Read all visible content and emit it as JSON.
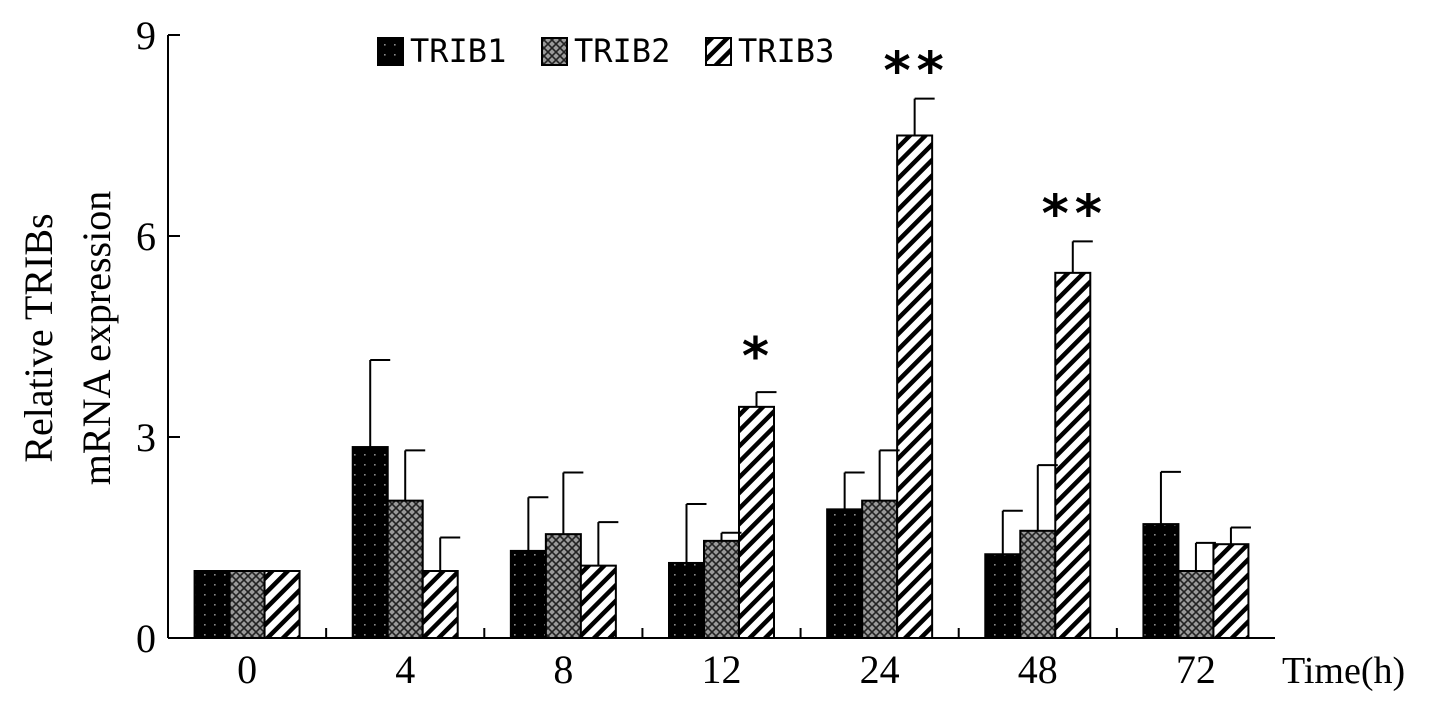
{
  "chart_data": {
    "type": "bar",
    "title": "",
    "ylabel_lines": [
      "Relative TRIBs",
      "mRNA expression"
    ],
    "xlabel": "Time(h)",
    "categories": [
      "0",
      "4",
      "8",
      "12",
      "24",
      "48",
      "72"
    ],
    "ylim": [
      0,
      9
    ],
    "yticks": [
      0,
      3,
      6,
      9
    ],
    "grid": false,
    "legend_position": "top-left",
    "series": [
      {
        "name": "TRIB1",
        "pattern": "dotted-black",
        "values": [
          1.0,
          2.85,
          1.3,
          1.12,
          1.92,
          1.25,
          1.7
        ],
        "errors": [
          0,
          1.3,
          0.8,
          0.88,
          0.55,
          0.65,
          0.78
        ],
        "significance": [
          "",
          "",
          "",
          "",
          "",
          "",
          ""
        ]
      },
      {
        "name": "TRIB2",
        "pattern": "crosshatch-gray",
        "values": [
          1.0,
          2.05,
          1.55,
          1.45,
          2.05,
          1.6,
          1.0
        ],
        "errors": [
          0,
          0.75,
          0.92,
          0.12,
          0.75,
          0.98,
          0.42
        ],
        "significance": [
          "",
          "",
          "",
          "",
          "",
          "",
          ""
        ]
      },
      {
        "name": "TRIB3",
        "pattern": "diagonal-stripes",
        "values": [
          1.0,
          1.0,
          1.08,
          3.45,
          7.5,
          5.45,
          1.4
        ],
        "errors": [
          0,
          0.5,
          0.65,
          0.22,
          0.55,
          0.47,
          0.25
        ],
        "significance": [
          "",
          "",
          "",
          "*",
          "**",
          "**",
          ""
        ]
      }
    ]
  }
}
